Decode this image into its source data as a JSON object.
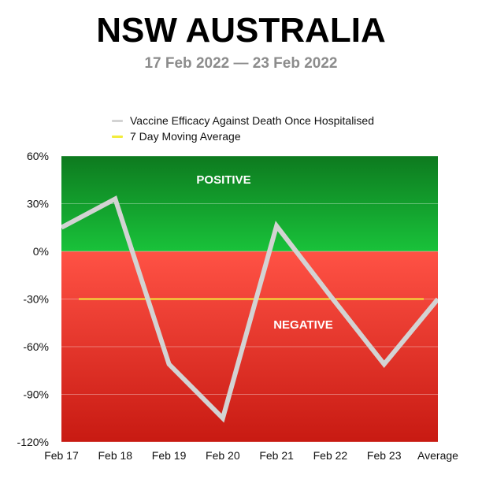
{
  "header": {
    "title": "NSW AUSTRALIA",
    "subtitle": "17 Feb 2022 — 23 Feb 2022"
  },
  "legend": {
    "items": [
      {
        "label": "Vaccine Efficacy Against Death Once Hospitalised",
        "color": "#d3d3d3"
      },
      {
        "label": "7 Day Moving Average",
        "color": "#f2ec3c"
      }
    ]
  },
  "zones": {
    "positive_label": "POSITIVE",
    "negative_label": "NEGATIVE",
    "positive_colors": [
      "#0d7a1f",
      "#19c23a"
    ],
    "negative_colors": [
      "#ff5245",
      "#c81a12"
    ]
  },
  "chart_data": {
    "type": "line",
    "categories": [
      "Feb 17",
      "Feb 18",
      "Feb 19",
      "Feb 20",
      "Feb 21",
      "Feb 22",
      "Feb 23",
      "Average"
    ],
    "series": [
      {
        "name": "Vaccine Efficacy Against Death Once Hospitalised",
        "color": "#d3d3d3",
        "values": [
          15,
          33,
          -71,
          -105,
          16,
          -28,
          -71,
          -30
        ]
      },
      {
        "name": "7 Day Moving Average",
        "color": "#f2ec3c",
        "values": [
          -30,
          -30,
          -30,
          -30,
          -30,
          -30,
          -30,
          -30
        ]
      }
    ],
    "yticks": [
      60,
      30,
      0,
      -30,
      -60,
      -90,
      -120
    ],
    "ytick_labels": [
      "60%",
      "30%",
      "0%",
      "-30%",
      "-60%",
      "-90%",
      "-120%"
    ],
    "ylim": [
      -120,
      60
    ],
    "grid": true,
    "legend_position": "top-center"
  }
}
